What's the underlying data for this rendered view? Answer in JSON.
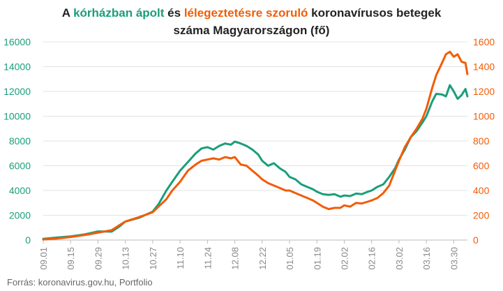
{
  "title": {
    "prefix": "A ",
    "green_part": "kórházban ápolt",
    "middle": " és ",
    "orange_part": "lélegeztetésre szoruló",
    "suffix": " koronavírusos betegek",
    "line2": "száma Magyarországon  (fő)"
  },
  "source": "Forrás: koronavirus.gov.hu, Portfolio",
  "colors": {
    "green": "#1a9e7a",
    "orange": "#f25c05",
    "grid": "#e3e3e3",
    "tick": "#888888"
  },
  "chart_data": {
    "type": "line",
    "x_tick_labels": [
      "09.01",
      "09.15",
      "09.29",
      "10.13",
      "10.27",
      "11.10",
      "11.24",
      "12.08",
      "12.22",
      "01.05",
      "01.19",
      "02.02",
      "02.16",
      "03.02",
      "03.16",
      "03.30"
    ],
    "x_tick_positions": [
      1,
      15,
      29,
      43,
      57,
      71,
      85,
      99,
      113,
      127,
      141,
      155,
      169,
      183,
      197,
      211
    ],
    "x_range": [
      1,
      218
    ],
    "y_left": {
      "range": [
        0,
        16000
      ],
      "ticks": [
        "0",
        "2000",
        "4000",
        "6000",
        "8000",
        "10000",
        "12000",
        "14000",
        "16000"
      ]
    },
    "y_right": {
      "range": [
        0,
        1600
      ],
      "ticks": [
        "0",
        "200",
        "400",
        "600",
        "800",
        "1000",
        "1200",
        "1400",
        "1600"
      ]
    },
    "series": [
      {
        "name": "kórházban ápolt",
        "axis": "left",
        "points": [
          [
            1,
            100
          ],
          [
            8,
            200
          ],
          [
            15,
            300
          ],
          [
            22,
            450
          ],
          [
            29,
            700
          ],
          [
            36,
            680
          ],
          [
            40,
            1100
          ],
          [
            43,
            1500
          ],
          [
            50,
            1800
          ],
          [
            57,
            2300
          ],
          [
            60,
            2900
          ],
          [
            64,
            4000
          ],
          [
            67,
            4700
          ],
          [
            71,
            5600
          ],
          [
            75,
            6300
          ],
          [
            79,
            7000
          ],
          [
            82,
            7400
          ],
          [
            85,
            7500
          ],
          [
            88,
            7300
          ],
          [
            91,
            7600
          ],
          [
            94,
            7800
          ],
          [
            97,
            7700
          ],
          [
            99,
            7950
          ],
          [
            102,
            7800
          ],
          [
            105,
            7600
          ],
          [
            108,
            7300
          ],
          [
            111,
            6900
          ],
          [
            113,
            6400
          ],
          [
            116,
            6000
          ],
          [
            119,
            6200
          ],
          [
            122,
            5800
          ],
          [
            125,
            5500
          ],
          [
            127,
            5100
          ],
          [
            130,
            4900
          ],
          [
            133,
            4500
          ],
          [
            136,
            4300
          ],
          [
            139,
            4100
          ],
          [
            141,
            3900
          ],
          [
            144,
            3700
          ],
          [
            147,
            3650
          ],
          [
            150,
            3700
          ],
          [
            153,
            3500
          ],
          [
            155,
            3600
          ],
          [
            158,
            3550
          ],
          [
            161,
            3750
          ],
          [
            164,
            3700
          ],
          [
            167,
            3900
          ],
          [
            169,
            4000
          ],
          [
            172,
            4300
          ],
          [
            175,
            4500
          ],
          [
            178,
            5100
          ],
          [
            181,
            5800
          ],
          [
            183,
            6500
          ],
          [
            186,
            7300
          ],
          [
            189,
            8300
          ],
          [
            192,
            8800
          ],
          [
            195,
            9500
          ],
          [
            197,
            10000
          ],
          [
            200,
            11200
          ],
          [
            202,
            11800
          ],
          [
            205,
            11750
          ],
          [
            207,
            11600
          ],
          [
            209,
            12500
          ],
          [
            211,
            12000
          ],
          [
            213,
            11400
          ],
          [
            215,
            11700
          ],
          [
            217,
            12200
          ],
          [
            218,
            11600
          ]
        ]
      },
      {
        "name": "lélegeztetésre szoruló",
        "axis": "right",
        "points": [
          [
            1,
            5
          ],
          [
            8,
            12
          ],
          [
            15,
            25
          ],
          [
            22,
            40
          ],
          [
            29,
            60
          ],
          [
            36,
            80
          ],
          [
            40,
            120
          ],
          [
            43,
            150
          ],
          [
            50,
            185
          ],
          [
            57,
            225
          ],
          [
            60,
            270
          ],
          [
            64,
            330
          ],
          [
            67,
            400
          ],
          [
            71,
            470
          ],
          [
            75,
            560
          ],
          [
            79,
            610
          ],
          [
            82,
            640
          ],
          [
            85,
            650
          ],
          [
            88,
            660
          ],
          [
            91,
            650
          ],
          [
            94,
            670
          ],
          [
            97,
            660
          ],
          [
            99,
            670
          ],
          [
            102,
            610
          ],
          [
            105,
            600
          ],
          [
            108,
            560
          ],
          [
            111,
            520
          ],
          [
            113,
            490
          ],
          [
            116,
            460
          ],
          [
            119,
            440
          ],
          [
            122,
            420
          ],
          [
            125,
            400
          ],
          [
            127,
            400
          ],
          [
            130,
            380
          ],
          [
            133,
            360
          ],
          [
            136,
            340
          ],
          [
            139,
            320
          ],
          [
            141,
            300
          ],
          [
            144,
            270
          ],
          [
            147,
            250
          ],
          [
            150,
            260
          ],
          [
            153,
            260
          ],
          [
            155,
            280
          ],
          [
            158,
            270
          ],
          [
            161,
            300
          ],
          [
            164,
            295
          ],
          [
            167,
            310
          ],
          [
            169,
            320
          ],
          [
            172,
            340
          ],
          [
            175,
            380
          ],
          [
            178,
            440
          ],
          [
            181,
            560
          ],
          [
            183,
            640
          ],
          [
            186,
            750
          ],
          [
            189,
            830
          ],
          [
            192,
            900
          ],
          [
            195,
            980
          ],
          [
            197,
            1060
          ],
          [
            200,
            1230
          ],
          [
            202,
            1330
          ],
          [
            205,
            1430
          ],
          [
            207,
            1500
          ],
          [
            209,
            1520
          ],
          [
            211,
            1480
          ],
          [
            213,
            1500
          ],
          [
            215,
            1440
          ],
          [
            217,
            1430
          ],
          [
            218,
            1340
          ]
        ]
      }
    ]
  }
}
